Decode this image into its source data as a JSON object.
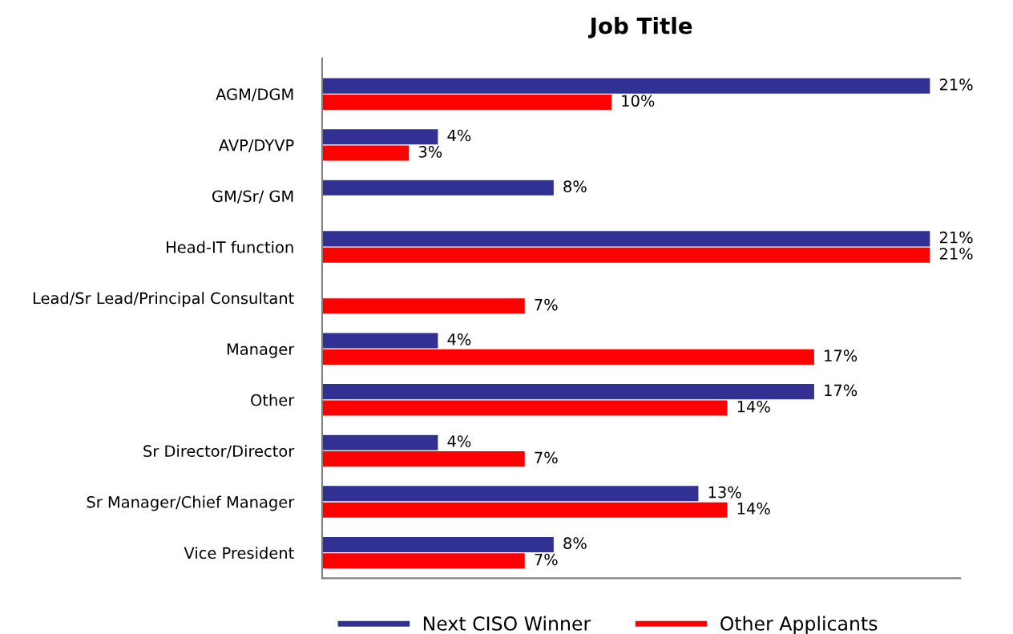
{
  "chart_data": {
    "type": "bar",
    "orientation": "horizontal",
    "title": "Job Title",
    "categories": [
      "AGM/DGM",
      "AVP/DYVP",
      "GM/Sr/ GM",
      "Head-IT function",
      "Lead/Sr Lead/Principal Consultant",
      "Manager",
      "Other",
      "Sr Director/Director",
      "Sr Manager/Chief Manager",
      "Vice President"
    ],
    "series": [
      {
        "name": "Next CISO Winner",
        "color": "#303192",
        "values": [
          21,
          4,
          8,
          21,
          null,
          4,
          17,
          4,
          13,
          8
        ],
        "value_labels": [
          "21%",
          "4%",
          "8%",
          "21%",
          null,
          "4%",
          "17%",
          "4%",
          "13%",
          "8%"
        ]
      },
      {
        "name": "Other Applicants",
        "color": "#ff0000",
        "values": [
          10,
          3,
          null,
          21,
          7,
          17,
          14,
          7,
          14,
          7
        ],
        "value_labels": [
          "10%",
          "3%",
          null,
          "21%",
          "7%",
          "17%",
          "14%",
          "7%",
          "14%",
          "7%"
        ]
      }
    ],
    "legend": "bottom",
    "grid": false,
    "tick_labels": "y"
  }
}
